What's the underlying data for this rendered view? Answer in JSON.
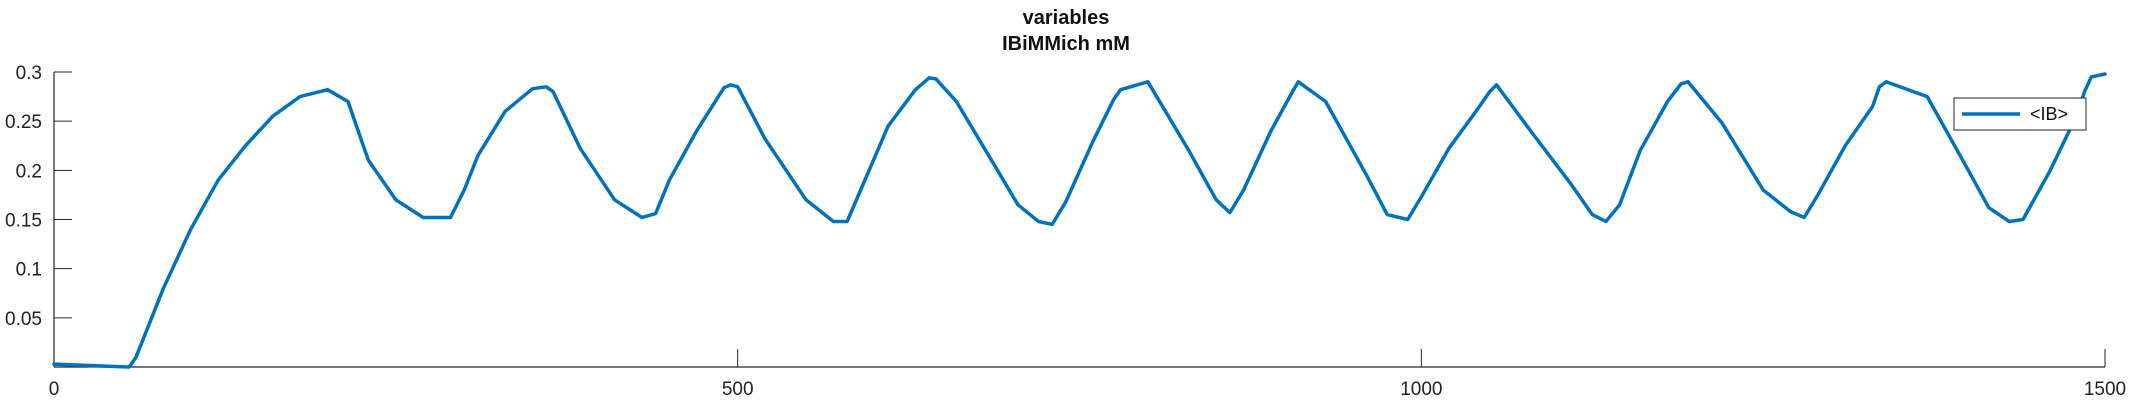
{
  "chart_data": {
    "type": "line",
    "title": "variables",
    "subtitle": "IBiMMich mM",
    "xlabel": "",
    "ylabel": "",
    "xlim": [
      0,
      1500
    ],
    "ylim": [
      0,
      0.3
    ],
    "x_ticks": [
      0,
      500,
      1000,
      1500
    ],
    "y_ticks": [
      0.05,
      0.1,
      0.15,
      0.2,
      0.25,
      0.3
    ],
    "x_tick_labels": [
      "0",
      "500",
      "1000",
      "1500"
    ],
    "y_tick_labels": [
      "0.05",
      "0.1",
      "0.15",
      "0.2",
      "0.25",
      "0.3"
    ],
    "grid": false,
    "legend_position": "top-right",
    "series": [
      {
        "name": "<IB>",
        "color": "#0072BD",
        "x": [
          0,
          55,
          60,
          80,
          100,
          120,
          140,
          160,
          170,
          180,
          200,
          215,
          225,
          230,
          250,
          270,
          290,
          300,
          310,
          330,
          350,
          360,
          365,
          385,
          410,
          430,
          440,
          450,
          470,
          490,
          495,
          500,
          520,
          550,
          570,
          580,
          590,
          610,
          630,
          640,
          645,
          660,
          690,
          705,
          720,
          730,
          740,
          760,
          775,
          780,
          800,
          830,
          850,
          860,
          870,
          890,
          905,
          910,
          930,
          960,
          975,
          990,
          1000,
          1020,
          1040,
          1050,
          1055,
          1080,
          1110,
          1125,
          1135,
          1145,
          1160,
          1180,
          1190,
          1195,
          1220,
          1250,
          1270,
          1280,
          1290,
          1310,
          1330,
          1335,
          1340,
          1370,
          1400,
          1415,
          1430,
          1440,
          1460,
          1480,
          1485,
          1490,
          1500
        ],
        "y": [
          0.003,
          0.0,
          0.01,
          0.08,
          0.14,
          0.19,
          0.225,
          0.255,
          0.265,
          0.275,
          0.282,
          0.27,
          0.23,
          0.21,
          0.17,
          0.152,
          0.152,
          0.18,
          0.215,
          0.26,
          0.283,
          0.285,
          0.28,
          0.222,
          0.17,
          0.152,
          0.156,
          0.19,
          0.24,
          0.284,
          0.287,
          0.285,
          0.232,
          0.17,
          0.148,
          0.148,
          0.18,
          0.245,
          0.282,
          0.294,
          0.293,
          0.27,
          0.2,
          0.165,
          0.148,
          0.145,
          0.168,
          0.23,
          0.272,
          0.282,
          0.29,
          0.22,
          0.17,
          0.157,
          0.18,
          0.24,
          0.278,
          0.29,
          0.27,
          0.195,
          0.155,
          0.15,
          0.173,
          0.222,
          0.26,
          0.28,
          0.287,
          0.24,
          0.185,
          0.155,
          0.148,
          0.165,
          0.22,
          0.27,
          0.288,
          0.29,
          0.248,
          0.18,
          0.158,
          0.152,
          0.175,
          0.225,
          0.265,
          0.285,
          0.29,
          0.275,
          0.2,
          0.162,
          0.148,
          0.15,
          0.2,
          0.258,
          0.28,
          0.295,
          0.298
        ]
      }
    ]
  }
}
